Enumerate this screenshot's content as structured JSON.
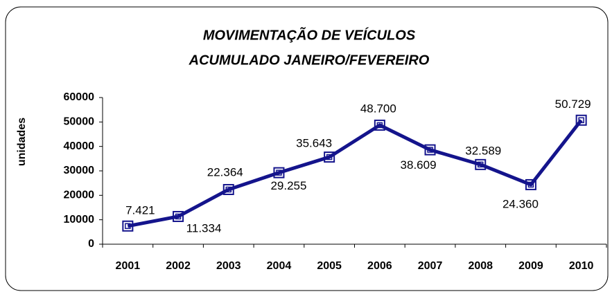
{
  "chart_data": {
    "type": "line",
    "title": "MOVIMENTAÇÃO DE VEÍCULOS",
    "subtitle": "ACUMULADO JANEIRO/FEVEREIRO",
    "y_label": "unidades",
    "categories": [
      "2001",
      "2002",
      "2003",
      "2004",
      "2005",
      "2006",
      "2007",
      "2008",
      "2009",
      "2010"
    ],
    "series": [
      {
        "name": "unidades",
        "color": "#14148c",
        "values": [
          7421,
          11334,
          22364,
          29255,
          35643,
          48700,
          38609,
          32589,
          24360,
          50729
        ],
        "value_labels": [
          "7.421",
          "11.334",
          "22.364",
          "29.255",
          "35.643",
          "48.700",
          "38.609",
          "32.589",
          "24.360",
          "50.729"
        ]
      }
    ],
    "ylim": [
      0,
      60000
    ],
    "yticks": [
      0,
      10000,
      20000,
      30000,
      40000,
      50000,
      60000
    ],
    "grid": false,
    "legend": false
  }
}
